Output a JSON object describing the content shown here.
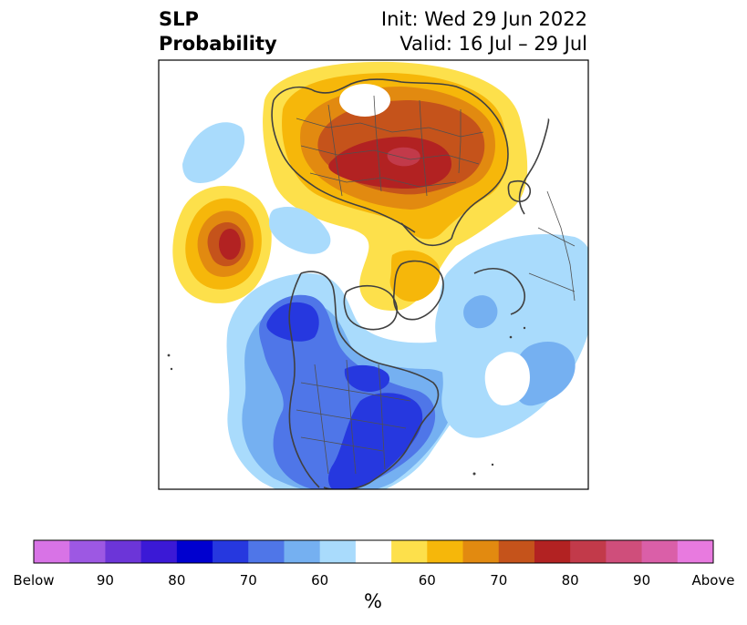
{
  "title": {
    "variable": "SLP",
    "subtitle": "Probability",
    "init": "Init: Wed 29 Jun 2022",
    "valid": "Valid: 16 Jul – 29 Jul"
  },
  "colorbar": {
    "unit": "%",
    "below_colors": [
      "#d873e6",
      "#9d58e3",
      "#6c35d8",
      "#3b19d6",
      "#0000cf",
      "#2638df",
      "#4f76e8",
      "#75b0f1",
      "#a9dbfc"
    ],
    "neutral_color": "#ffffff",
    "above_colors": [
      "#fde04b",
      "#f6b70a",
      "#e28a10",
      "#c5531b",
      "#b22222",
      "#c23a4a",
      "#cf4e7b",
      "#da5fa8",
      "#e87adf"
    ],
    "labels": [
      "Below",
      "90",
      "80",
      "70",
      "60",
      "60",
      "70",
      "80",
      "90",
      "Above"
    ]
  },
  "map": {
    "projection": "north-polar-stereographic",
    "legend_colors": {
      "strong_above": "#b22222",
      "above": "#c5531b",
      "mod_above": "#e28a10",
      "weak_above": "#f6b70a",
      "slight_above": "#fde04b",
      "slight_below": "#a9dbfc",
      "weak_below": "#75b0f1",
      "mod_below": "#4f76e8",
      "strong_below": "#2638df"
    }
  }
}
